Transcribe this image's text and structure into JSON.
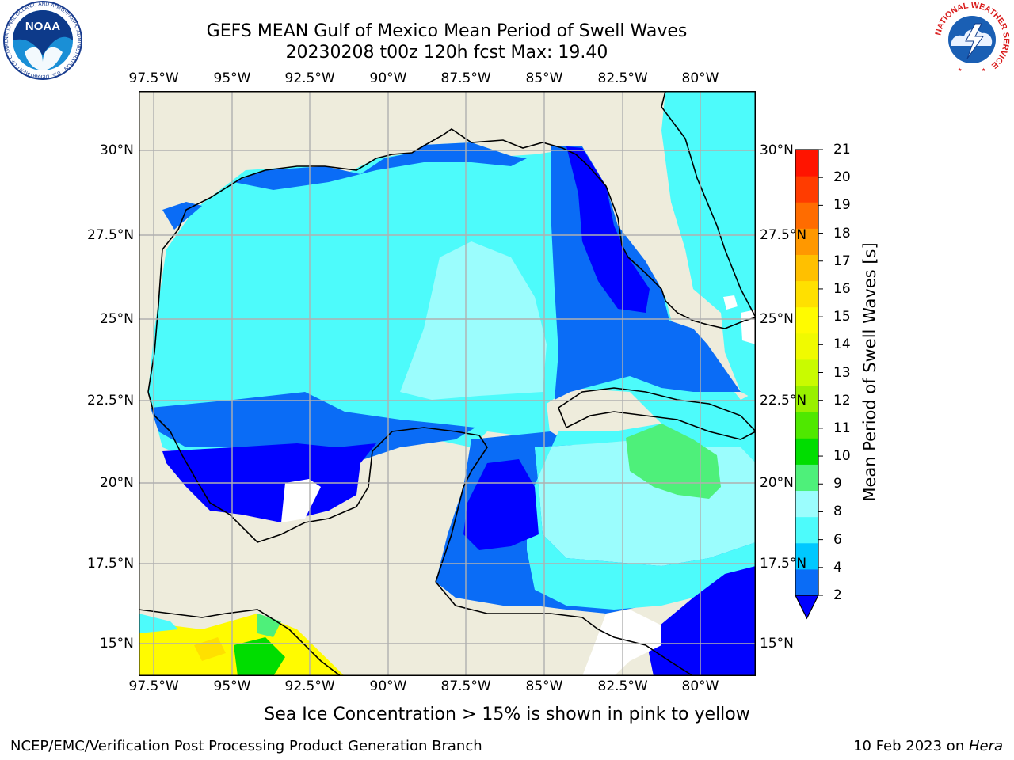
{
  "header": {
    "title_line1": "GEFS MEAN Gulf of Mexico Mean Period of Swell Waves",
    "title_line2": "20230208 t00z 120h fcst   Max: 19.40"
  },
  "map": {
    "lon_labels": [
      "97.5°W",
      "95°W",
      "92.5°W",
      "90°W",
      "87.5°W",
      "85°W",
      "82.5°W",
      "80°W"
    ],
    "lat_labels": [
      "30°N",
      "27.5°N",
      "25°N",
      "22.5°N",
      "20°N",
      "17.5°N",
      "15°N"
    ],
    "colors": {
      "land": "#eeecdc",
      "ocean_default": "#4dfbfb",
      "grid": "#b0b0b0"
    }
  },
  "colorbar": {
    "title": "Mean Period of Swell Waves [s]",
    "ticks": [
      "21",
      "20",
      "19",
      "18",
      "17",
      "16",
      "15",
      "14",
      "13",
      "12",
      "11",
      "10",
      "9",
      "8",
      "6",
      "4",
      "2"
    ],
    "colors_bottom_to_top": [
      "#0a6cf6",
      "#00c8ff",
      "#4dfbfb",
      "#9bfdfd",
      "#4ef07a",
      "#00dd00",
      "#4fe800",
      "#99f000",
      "#c9fb00",
      "#f0fa00",
      "#fffb00",
      "#ffe000",
      "#ffc000",
      "#ff9800",
      "#ff6c00",
      "#ff3c00",
      "#ff1400"
    ],
    "extend_color": "#0000ff"
  },
  "note": "Sea Ice Concentration > 15% is shown in pink to yellow",
  "footer": {
    "left": "NCEP/EMC/Verification Post Processing Product Generation Branch",
    "right_prefix": "10 Feb 2023 on ",
    "right_host": "Hera"
  },
  "logos": {
    "noaa_text": "NOAA",
    "noaa_ring": "NATIONAL OCEANIC AND ATMOSPHERIC ADMINISTRATION · U.S. DEPARTMENT OF COMMERCE",
    "nws_ring": "NATIONAL WEATHER SERVICE"
  }
}
